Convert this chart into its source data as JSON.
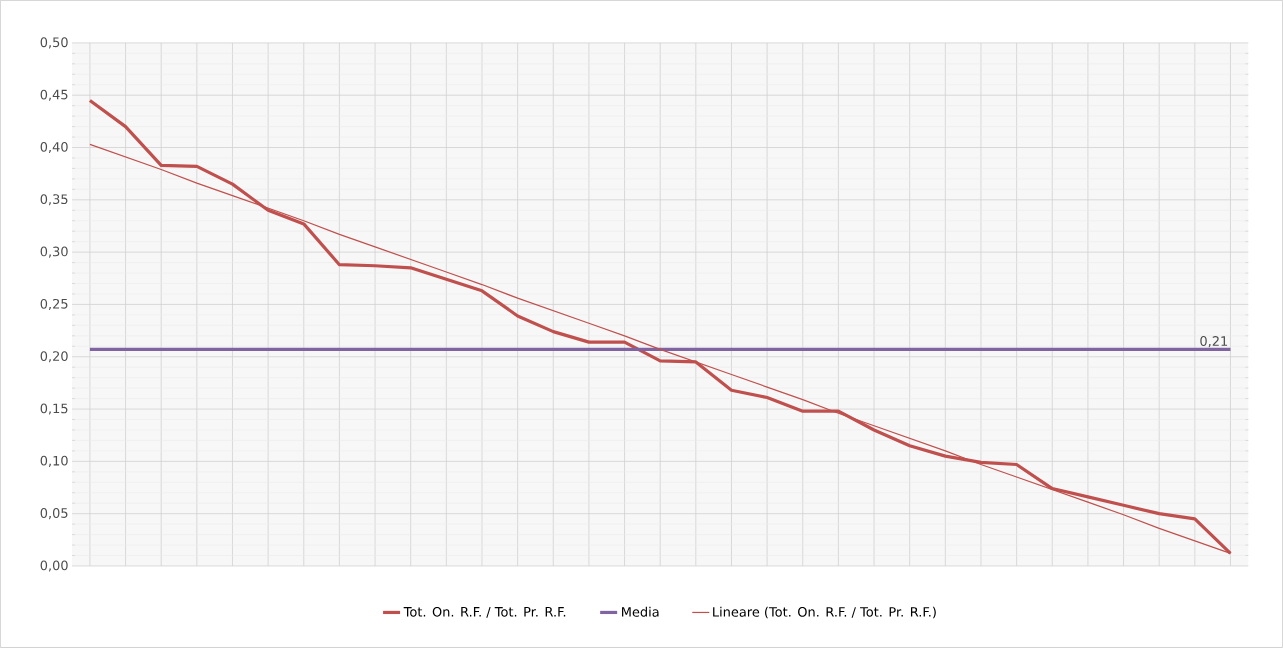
{
  "chart_data": {
    "type": "line",
    "categories": [
      null,
      null,
      null,
      null,
      null,
      null,
      null,
      null,
      null,
      null,
      null,
      null,
      null,
      null,
      null,
      null,
      null,
      null,
      null,
      null,
      null,
      null,
      null,
      null,
      null,
      null,
      null,
      null,
      null,
      null,
      null,
      null,
      null
    ],
    "series": [
      {
        "name": "Tot. On. R.F. / Tot. Pr. R.F.",
        "color": "#c0504d",
        "values": [
          0.445,
          0.42,
          0.383,
          0.382,
          0.365,
          0.34,
          0.327,
          0.288,
          0.287,
          0.285,
          0.274,
          0.263,
          0.239,
          0.224,
          0.214,
          0.214,
          0.196,
          0.195,
          0.168,
          0.161,
          0.148,
          0.148,
          0.13,
          0.115,
          0.105,
          0.099,
          0.097,
          0.074,
          0.066,
          0.058,
          0.05,
          0.045,
          0.012
        ]
      },
      {
        "name": "Media",
        "color": "#8064a2",
        "values": [
          0.207,
          0.207,
          0.207,
          0.207,
          0.207,
          0.207,
          0.207,
          0.207,
          0.207,
          0.207,
          0.207,
          0.207,
          0.207,
          0.207,
          0.207,
          0.207,
          0.207,
          0.207,
          0.207,
          0.207,
          0.207,
          0.207,
          0.207,
          0.207,
          0.207,
          0.207,
          0.207,
          0.207,
          0.207,
          0.207,
          0.207,
          0.207,
          0.207
        ],
        "value_labels": [
          null,
          null,
          null,
          null,
          null,
          null,
          null,
          null,
          null,
          null,
          null,
          null,
          null,
          null,
          null,
          null,
          null,
          null,
          null,
          null,
          null,
          null,
          null,
          null,
          null,
          null,
          null,
          null,
          null,
          null,
          null,
          null,
          "0,21"
        ]
      },
      {
        "name": "Lineare (Tot. On. R.F. / Tot. Pr. R.F.)",
        "color": "#c0504d",
        "values": [
          0.403,
          0.391,
          0.379,
          0.366,
          0.354,
          0.342,
          0.33,
          0.317,
          0.305,
          0.293,
          0.281,
          0.269,
          0.256,
          0.244,
          0.232,
          0.22,
          0.207,
          0.195,
          0.183,
          0.171,
          0.159,
          0.146,
          0.134,
          0.122,
          0.11,
          0.097,
          0.085,
          0.073,
          0.061,
          0.049,
          0.036,
          0.024,
          0.012
        ]
      }
    ],
    "ylim": [
      0,
      0.5
    ],
    "yticks": [
      {
        "value": 0,
        "label": "0,00"
      },
      {
        "value": 0.05,
        "label": "0,05"
      },
      {
        "value": 0.1,
        "label": "0,10"
      },
      {
        "value": 0.15,
        "label": "0,15"
      },
      {
        "value": 0.2,
        "label": "0,20"
      },
      {
        "value": 0.25,
        "label": "0,25"
      },
      {
        "value": 0.3,
        "label": "0,30"
      },
      {
        "value": 0.35,
        "label": "0,35"
      },
      {
        "value": 0.4,
        "label": "0,40"
      },
      {
        "value": 0.45,
        "label": "0,45"
      },
      {
        "value": 0.5,
        "label": "0,50"
      }
    ],
    "grid": true,
    "legend": "bottom",
    "tick_labels": "y",
    "marker": "none",
    "line_style": "solid"
  }
}
